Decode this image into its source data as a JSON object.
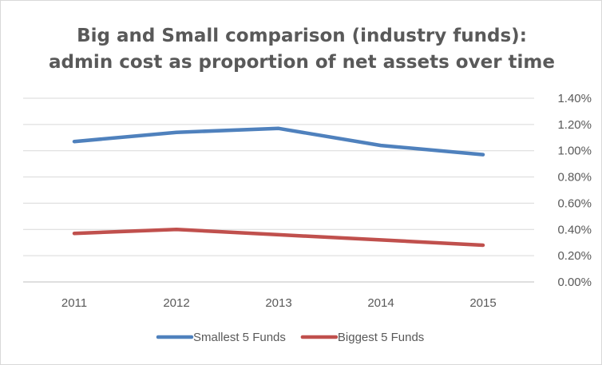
{
  "chart_data": {
    "type": "line",
    "title": "Big and Small comparison (industry funds):",
    "subtitle": "admin cost as proportion of net assets over time",
    "categories": [
      "2011",
      "2012",
      "2013",
      "2014",
      "2015"
    ],
    "series": [
      {
        "name": "Smallest 5 Funds",
        "color": "#4f81bd",
        "values": [
          1.07,
          1.14,
          1.17,
          1.04,
          0.97
        ]
      },
      {
        "name": "Biggest 5 Funds",
        "color": "#c0504d",
        "values": [
          0.37,
          0.4,
          0.36,
          0.32,
          0.28
        ]
      }
    ],
    "y_ticks": [
      "0.00%",
      "0.20%",
      "0.40%",
      "0.60%",
      "0.80%",
      "1.00%",
      "1.20%",
      "1.40%"
    ],
    "ylim": [
      0,
      1.4
    ],
    "y_axis_side": "right",
    "grid": true,
    "legend": "bottom"
  }
}
